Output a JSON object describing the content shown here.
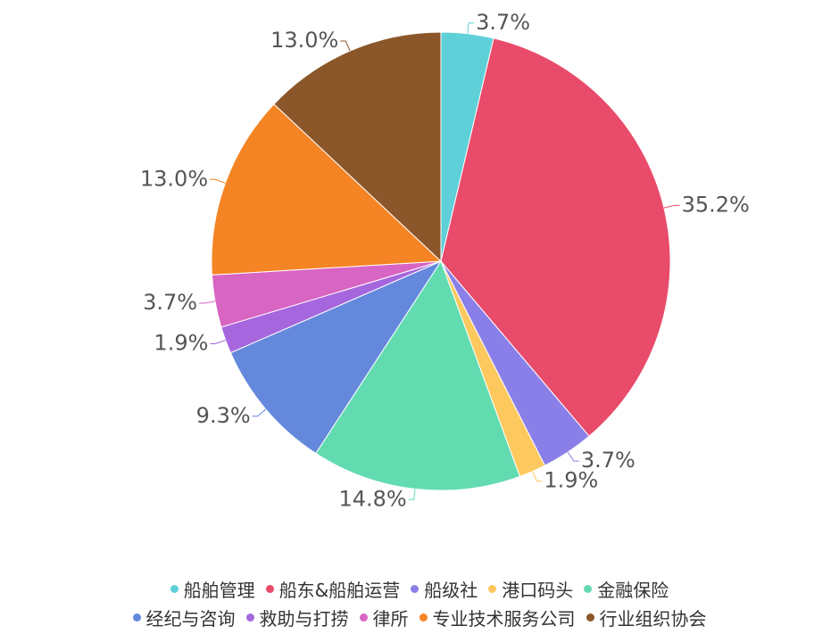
{
  "chart_data": {
    "type": "pie",
    "categories": [
      "船舶管理",
      "船东&船舶运营",
      "船级社",
      "港口码头",
      "金融保险",
      "经纪与咨询",
      "救助与打捞",
      "律所",
      "专业技术服务公司",
      "行业组织协会"
    ],
    "values": [
      3.7,
      35.2,
      3.7,
      1.9,
      14.8,
      9.3,
      1.9,
      3.7,
      13.0,
      13.0
    ],
    "value_labels": [
      "3.7%",
      "35.2%",
      "3.7%",
      "1.9%",
      "14.8%",
      "9.3%",
      "1.9%",
      "3.7%",
      "13.0%",
      "13.0%"
    ],
    "colors": [
      "#5fd0d8",
      "#e94b6a",
      "#8a7fe8",
      "#fdc85e",
      "#62dbb0",
      "#6488dc",
      "#a666de",
      "#d864c3",
      "#f48424",
      "#8b572a"
    ],
    "legend": "bottom"
  }
}
